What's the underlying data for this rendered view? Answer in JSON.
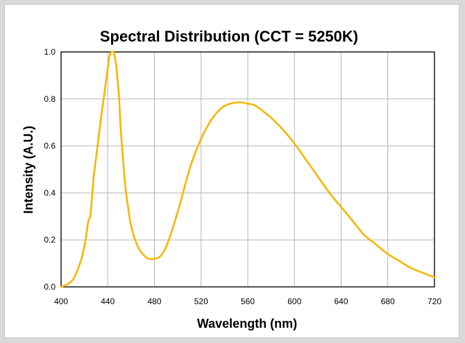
{
  "chart_data": {
    "type": "line",
    "title": "Spectral Distribution  (CCT = 5250K)",
    "xlabel": "Wavelength (nm)",
    "ylabel": "Intensity (A.U.)",
    "xlim": [
      400,
      720
    ],
    "ylim": [
      0,
      1.0
    ],
    "x_ticks": [
      "400",
      "440",
      "480",
      "520",
      "560",
      "600",
      "640",
      "680",
      "720"
    ],
    "y_ticks": [
      "0.0",
      "0.2",
      "0.4",
      "0.6",
      "0.8",
      "1.0"
    ],
    "grid": true,
    "legend": "none",
    "series": [
      {
        "color": "#f7b500",
        "x": [
          400,
          405,
          410,
          414,
          418,
          421,
          423,
          424,
          425,
          426,
          428,
          430,
          432,
          435,
          437,
          440,
          441,
          442,
          443,
          444,
          445,
          446,
          447,
          448,
          449,
          450,
          451,
          453,
          455,
          458,
          460,
          465,
          470,
          475,
          480,
          485,
          490,
          495,
          500,
          505,
          510,
          515,
          520,
          525,
          530,
          535,
          540,
          545,
          550,
          555,
          560,
          565,
          570,
          575,
          580,
          590,
          600,
          610,
          620,
          630,
          640,
          650,
          660,
          670,
          680,
          690,
          700,
          710,
          720
        ],
        "y": [
          0.0,
          0.01,
          0.03,
          0.07,
          0.13,
          0.2,
          0.27,
          0.29,
          0.3,
          0.35,
          0.47,
          0.55,
          0.63,
          0.75,
          0.82,
          0.93,
          0.97,
          0.99,
          1.0,
          1.0,
          1.0,
          0.98,
          0.95,
          0.9,
          0.85,
          0.78,
          0.68,
          0.55,
          0.43,
          0.32,
          0.26,
          0.18,
          0.14,
          0.12,
          0.12,
          0.13,
          0.17,
          0.24,
          0.32,
          0.41,
          0.5,
          0.57,
          0.63,
          0.68,
          0.72,
          0.75,
          0.77,
          0.78,
          0.785,
          0.785,
          0.78,
          0.775,
          0.76,
          0.74,
          0.72,
          0.67,
          0.61,
          0.54,
          0.47,
          0.4,
          0.34,
          0.28,
          0.22,
          0.18,
          0.14,
          0.11,
          0.08,
          0.06,
          0.04
        ]
      }
    ]
  }
}
